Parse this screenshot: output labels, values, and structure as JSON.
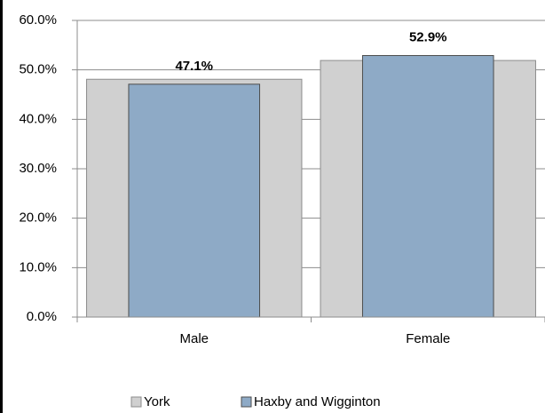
{
  "chart_data": {
    "type": "overlap-bar",
    "categories": [
      "Male",
      "Female"
    ],
    "series": [
      {
        "name": "York",
        "color": "#d0d0d0",
        "values": [
          48.1,
          51.9
        ]
      },
      {
        "name": "Haxby and Wigginton",
        "color": "#8eaac6",
        "values": [
          47.1,
          52.9
        ],
        "value_labels": [
          "47.1%",
          "52.9%"
        ]
      }
    ],
    "ylim": [
      0,
      60
    ],
    "yticks": [
      {
        "value": 0,
        "label": "0.0%"
      },
      {
        "value": 10,
        "label": "10.0%"
      },
      {
        "value": 20,
        "label": "20.0%"
      },
      {
        "value": 30,
        "label": "30.0%"
      },
      {
        "value": 40,
        "label": "40.0%"
      },
      {
        "value": 50,
        "label": "50.0%"
      },
      {
        "value": 60,
        "label": "60.0%"
      }
    ],
    "grid": true,
    "legend": "bottom"
  }
}
